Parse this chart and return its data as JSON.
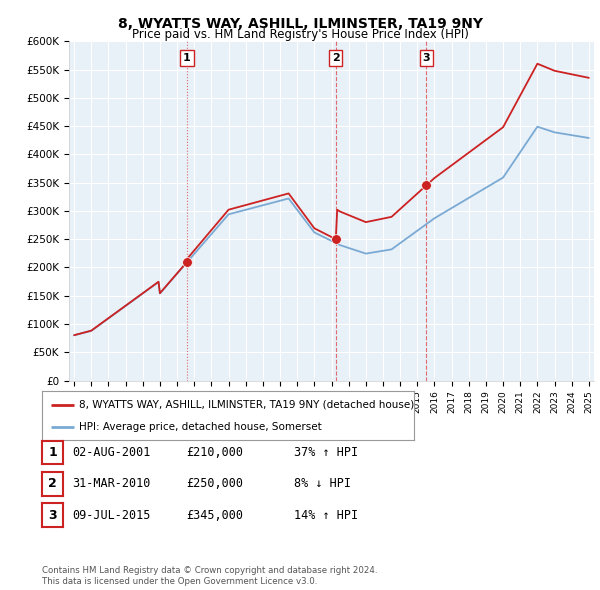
{
  "title": "8, WYATTS WAY, ASHILL, ILMINSTER, TA19 9NY",
  "subtitle": "Price paid vs. HM Land Registry's House Price Index (HPI)",
  "ylabel_ticks": [
    "£0",
    "£50K",
    "£100K",
    "£150K",
    "£200K",
    "£250K",
    "£300K",
    "£350K",
    "£400K",
    "£450K",
    "£500K",
    "£550K",
    "£600K"
  ],
  "ylim": [
    0,
    600000
  ],
  "ytick_values": [
    0,
    50000,
    100000,
    150000,
    200000,
    250000,
    300000,
    350000,
    400000,
    450000,
    500000,
    550000,
    600000
  ],
  "plot_bg_color": "#e8f0f8",
  "background_color": "#ffffff",
  "grid_color": "#ffffff",
  "hpi_color": "#7aaad4",
  "price_color": "#cc2222",
  "vline_color": "#dd3333",
  "sales": [
    {
      "date_num": 2001.58,
      "price": 210000,
      "label": "1"
    },
    {
      "date_num": 2010.25,
      "price": 250000,
      "label": "2"
    },
    {
      "date_num": 2015.52,
      "price": 345000,
      "label": "3"
    }
  ],
  "table_rows": [
    {
      "num": "1",
      "date": "02-AUG-2001",
      "price": "£210,000",
      "hpi": "37% ↑ HPI"
    },
    {
      "num": "2",
      "date": "31-MAR-2010",
      "price": "£250,000",
      "hpi": "8% ↓ HPI"
    },
    {
      "num": "3",
      "date": "09-JUL-2015",
      "price": "£345,000",
      "hpi": "14% ↑ HPI"
    }
  ],
  "legend_house": "8, WYATTS WAY, ASHILL, ILMINSTER, TA19 9NY (detached house)",
  "legend_hpi": "HPI: Average price, detached house, Somerset",
  "footnote": "Contains HM Land Registry data © Crown copyright and database right 2024.\nThis data is licensed under the Open Government Licence v3.0.",
  "xmin": 1994.7,
  "xmax": 2025.3
}
